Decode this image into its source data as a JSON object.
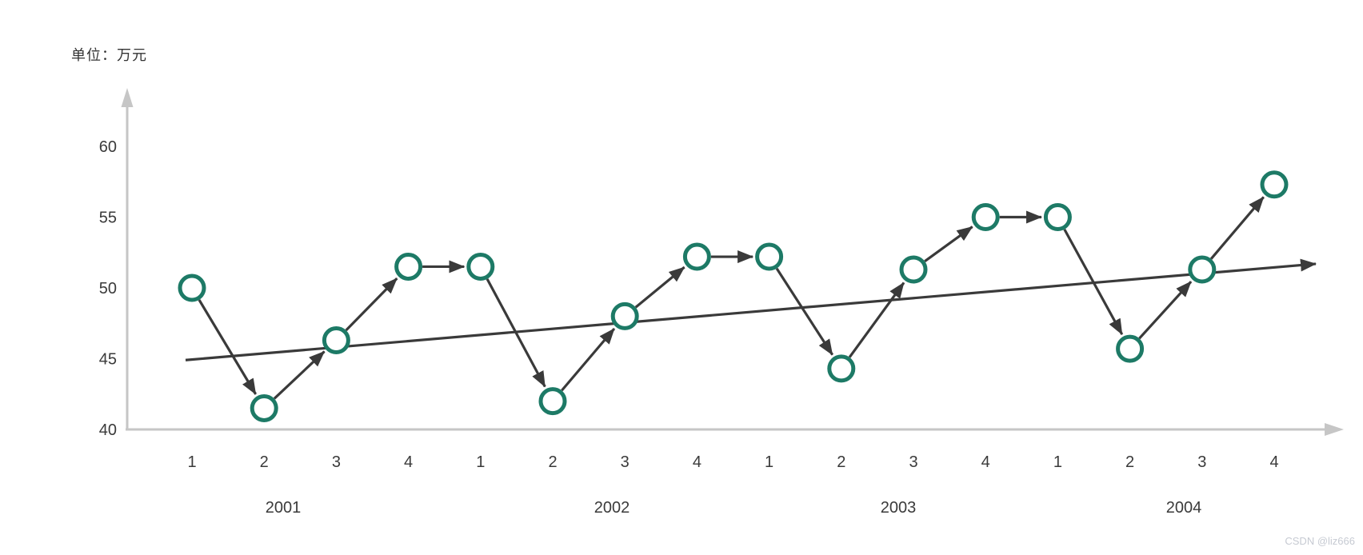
{
  "unit_label": "单位：万元",
  "watermark": "CSDN @liz666",
  "chart_data": {
    "type": "line",
    "title": "单位：万元",
    "subtitle": "",
    "legend_position": "none",
    "grid": false,
    "y_axis": {
      "tick_labels": [
        "60",
        "55",
        "50",
        "45",
        "40"
      ],
      "ticks": [
        60,
        55,
        50,
        45,
        40
      ],
      "range": [
        40,
        62
      ]
    },
    "x_axis": {
      "quarter_tick_labels": [
        "1",
        "2",
        "3",
        "4",
        "1",
        "2",
        "3",
        "4",
        "1",
        "2",
        "3",
        "4",
        "1",
        "2",
        "3",
        "4"
      ],
      "year_labels": [
        "2001",
        "2002",
        "2003",
        "2004"
      ]
    },
    "series": [
      {
        "name": "quarterly-values",
        "marker": "open-circle",
        "connector": "arrow-segments",
        "quarters": [
          "2001-Q1",
          "2001-Q2",
          "2001-Q3",
          "2001-Q4",
          "2002-Q1",
          "2002-Q2",
          "2002-Q3",
          "2002-Q4",
          "2003-Q1",
          "2003-Q2",
          "2003-Q3",
          "2003-Q4",
          "2004-Q1",
          "2004-Q2",
          "2004-Q3",
          "2004-Q4"
        ],
        "values": [
          50,
          41.5,
          46.3,
          51.5,
          51.5,
          42,
          48,
          52.2,
          52.2,
          44.3,
          51.3,
          55,
          55,
          45.7,
          51.3,
          57.3
        ]
      },
      {
        "name": "trend-line",
        "shape": "straight-line-with-arrow",
        "start_value": 44.9,
        "end_value": 51.7
      }
    ],
    "colors": {
      "marker_stroke": "#1d7a66",
      "connector_line": "#3a3a3a",
      "axis": "#c6c6c6",
      "label_text": "#3a3a3a",
      "watermark": "#c6cad2"
    }
  }
}
